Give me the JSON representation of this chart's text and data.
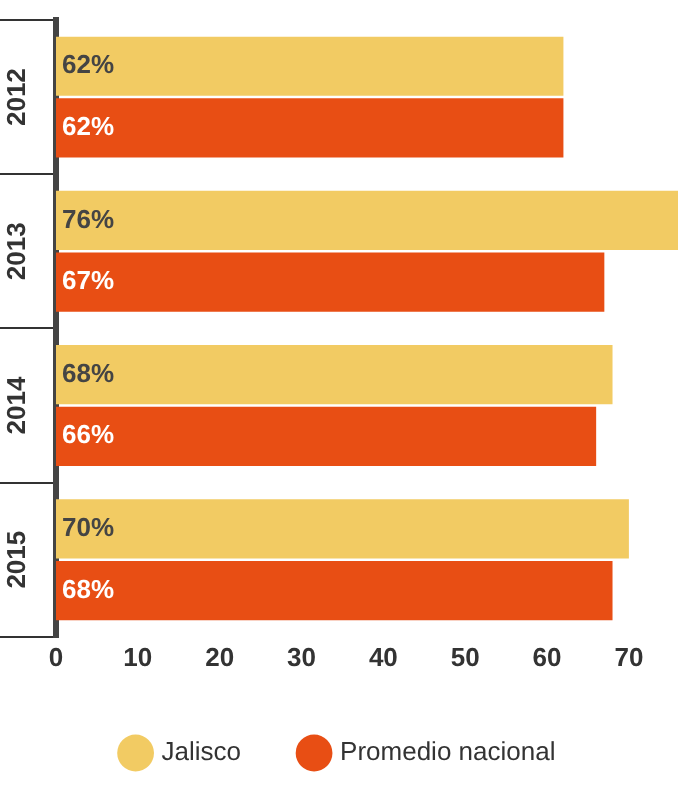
{
  "chart_data": {
    "type": "bar",
    "orientation": "horizontal",
    "categories": [
      "2012",
      "2013",
      "2014",
      "2015"
    ],
    "series": [
      {
        "name": "Jalisco",
        "color": "#f2cb63",
        "values": [
          62,
          76,
          68,
          70
        ],
        "value_labels": [
          "62%",
          "76%",
          "68%",
          "70%"
        ]
      },
      {
        "name": "Promedio nacional",
        "color": "#e84e14",
        "values": [
          62,
          67,
          66,
          68
        ],
        "value_labels": [
          "62%",
          "67%",
          "66%",
          "68%"
        ]
      }
    ],
    "xlim": [
      0,
      76
    ],
    "xticks": [
      0,
      10,
      20,
      30,
      40,
      50,
      60,
      70
    ],
    "grid": false,
    "legend": "bottom"
  }
}
